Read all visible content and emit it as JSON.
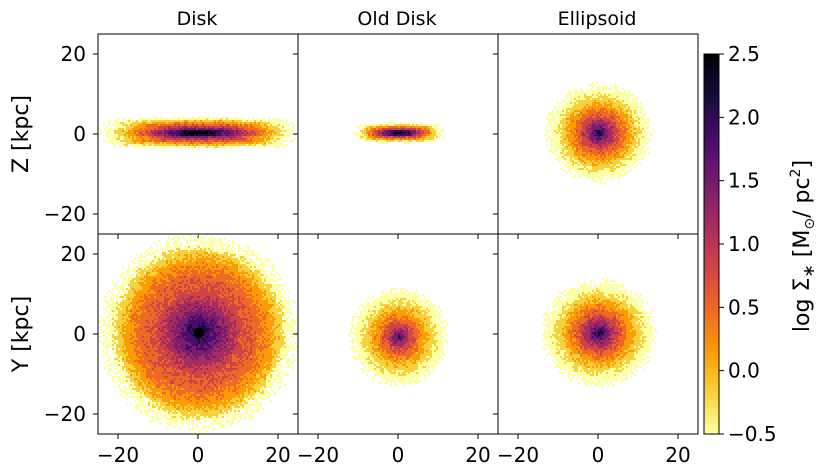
{
  "chart_data": {
    "type": "heatmap",
    "grid": false,
    "panels": [
      {
        "title": "Disk",
        "row": "edge-on",
        "shape": "disk-edge",
        "cx": 0,
        "cy": 0,
        "rx": 24,
        "ry": 4,
        "core": 2.4
      },
      {
        "title": "Old Disk",
        "row": "edge-on",
        "shape": "disk-edge",
        "cx": 0,
        "cy": 0,
        "rx": 11,
        "ry": 2.5,
        "core": 2.3
      },
      {
        "title": "Ellipsoid",
        "row": "edge-on",
        "shape": "blob",
        "cx": 0,
        "cy": 0,
        "rx": 13,
        "ry": 12,
        "core": 2.5
      },
      {
        "title": "",
        "row": "face-on",
        "shape": "disk-face",
        "cx": 0,
        "cy": 0,
        "rx": 24,
        "ry": 24,
        "core": 2.3
      },
      {
        "title": "",
        "row": "face-on",
        "shape": "blob",
        "cx": 0,
        "cy": -1,
        "rx": 12,
        "ry": 12,
        "core": 2.1
      },
      {
        "title": "",
        "row": "face-on",
        "shape": "blob",
        "cx": 0,
        "cy": 0,
        "rx": 14,
        "ry": 13,
        "core": 2.5
      }
    ],
    "row_ylabels": [
      "Z [kpc]",
      "Y [kpc]"
    ],
    "xlim": [
      -25,
      25
    ],
    "ylim": [
      -25,
      25
    ],
    "xticks": [
      -20,
      0,
      20
    ],
    "yticks": [
      20,
      0,
      -20
    ],
    "xtick_labels": [
      "−20",
      "0",
      "20"
    ],
    "ytick_labels": [
      "20",
      "0",
      "−20"
    ],
    "colorbar": {
      "label": "log Σ∗ [M⊙/ pc²]",
      "range": [
        -0.5,
        2.5
      ],
      "ticks": [
        2.5,
        2.0,
        1.5,
        1.0,
        0.5,
        0.0,
        -0.5
      ],
      "tick_labels": [
        "2.5",
        "2.0",
        "1.5",
        "1.0",
        "0.5",
        "0.0",
        "−0.5"
      ],
      "colormap": "inferno_r",
      "colors": [
        "#fcffa4",
        "#f7d13d",
        "#fb9b06",
        "#ed6925",
        "#cf4446",
        "#a52c60",
        "#781c6d",
        "#4a0c6b",
        "#1b0c41",
        "#000004"
      ]
    }
  }
}
